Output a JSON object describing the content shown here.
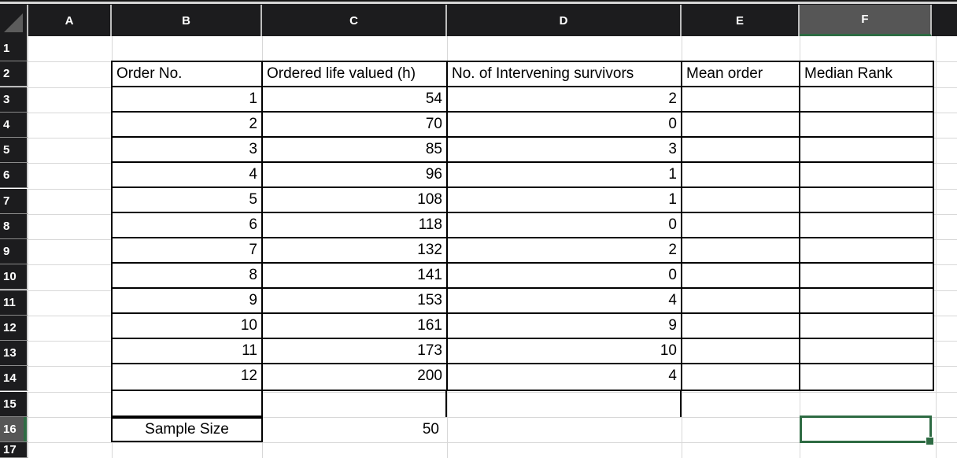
{
  "sheet": {
    "column_letters": [
      "A",
      "B",
      "C",
      "D",
      "E",
      "F"
    ],
    "row_numbers": [
      "1",
      "2",
      "3",
      "4",
      "5",
      "6",
      "7",
      "8",
      "9",
      "10",
      "11",
      "12",
      "13",
      "14",
      "15",
      "16",
      "17"
    ],
    "selected_column": "F",
    "selected_row": "16",
    "active_cell": "F16"
  },
  "table": {
    "headers": [
      "Order No.",
      "Ordered life valued (h)",
      "No. of Intervening survivors",
      "Mean order",
      "Median Rank"
    ],
    "rows": [
      {
        "order": "1",
        "life": "54",
        "survivors": "2",
        "mean_order": "",
        "median_rank": ""
      },
      {
        "order": "2",
        "life": "70",
        "survivors": "0",
        "mean_order": "",
        "median_rank": ""
      },
      {
        "order": "3",
        "life": "85",
        "survivors": "3",
        "mean_order": "",
        "median_rank": ""
      },
      {
        "order": "4",
        "life": "96",
        "survivors": "1",
        "mean_order": "",
        "median_rank": ""
      },
      {
        "order": "5",
        "life": "108",
        "survivors": "1",
        "mean_order": "",
        "median_rank": ""
      },
      {
        "order": "6",
        "life": "118",
        "survivors": "0",
        "mean_order": "",
        "median_rank": ""
      },
      {
        "order": "7",
        "life": "132",
        "survivors": "2",
        "mean_order": "",
        "median_rank": ""
      },
      {
        "order": "8",
        "life": "141",
        "survivors": "0",
        "mean_order": "",
        "median_rank": ""
      },
      {
        "order": "9",
        "life": "153",
        "survivors": "4",
        "mean_order": "",
        "median_rank": ""
      },
      {
        "order": "10",
        "life": "161",
        "survivors": "9",
        "mean_order": "",
        "median_rank": ""
      },
      {
        "order": "11",
        "life": "173",
        "survivors": "10",
        "mean_order": "",
        "median_rank": ""
      },
      {
        "order": "12",
        "life": "200",
        "survivors": "4",
        "mean_order": "",
        "median_rank": ""
      }
    ]
  },
  "footer": {
    "label": "Sample Size",
    "value": "50"
  },
  "colors": {
    "header_bg": "#1c1c1e",
    "selected_header_bg": "#565656",
    "accent_green": "#2e6b43",
    "gridline": "#d8d8d8",
    "cell_border": "#000000"
  }
}
